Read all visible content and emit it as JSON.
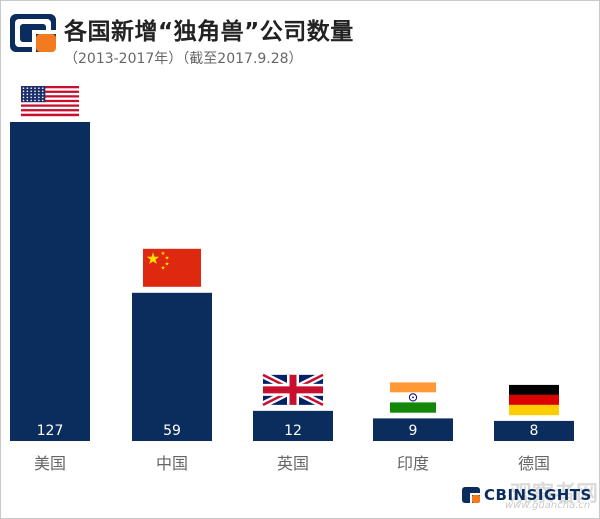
{
  "header": {
    "title": "各国新增“独角兽”公司数量",
    "subtitle": "（2013-2017年）（截至2017.9.28）"
  },
  "brand": {
    "text": "CBINSIGHTS",
    "color": "#0a2d5e"
  },
  "watermark": {
    "main": "观察者网",
    "sub": "www.guancha.cn"
  },
  "colors": {
    "bar": "#0a2d5e",
    "logo_blue": "#0a2d5e",
    "logo_orange": "#f47a20"
  },
  "chart_data": {
    "type": "bar",
    "categories": [
      "美国",
      "中国",
      "英国",
      "印度",
      "德国"
    ],
    "values": [
      127,
      59,
      12,
      9,
      8
    ],
    "flag_icons": [
      "us-flag-icon",
      "china-flag-icon",
      "uk-flag-icon",
      "india-flag-icon",
      "germany-flag-icon"
    ],
    "title": "各国新增“独角兽”公司数量",
    "xlabel": "",
    "ylabel": "",
    "ylim": [
      0,
      127
    ],
    "grid": false,
    "legend": "none"
  }
}
